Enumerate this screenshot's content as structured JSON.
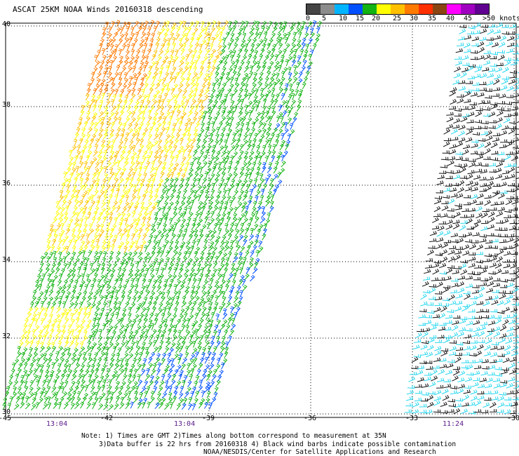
{
  "title": "ASCAT 25KM NOAA Winds 20160318 descending",
  "legend": {
    "colors": [
      "#444444",
      "#8c8c8c",
      "#00b4ff",
      "#0050ff",
      "#12b312",
      "#ffff00",
      "#ffc000",
      "#ff7a00",
      "#ff3000",
      "#8b4513",
      "#ff00ff",
      "#a000c0",
      "#600090"
    ],
    "labels": [
      "0",
      "5",
      "10",
      "15",
      "20",
      "25",
      "30",
      "35",
      "40",
      "45",
      ">50 knots"
    ]
  },
  "axes": {
    "lat_labels": [
      "40",
      "38",
      "36",
      "34",
      "32",
      "30"
    ],
    "lon_labels": [
      "-45",
      "-42",
      "-39",
      "-36",
      "-33",
      "-30"
    ]
  },
  "times": [
    "13:04",
    "13:04",
    "11:24"
  ],
  "notes": [
    "Note: 1) Times are GMT 2)Times along bottom correspond to measurement at 35N",
    "3)Data buffer is 22 hrs from 20160318 4) Black wind barbs indicate possible contamination",
    "NOAA/NESDIS/Center for Satellite Applications and Research"
  ]
}
